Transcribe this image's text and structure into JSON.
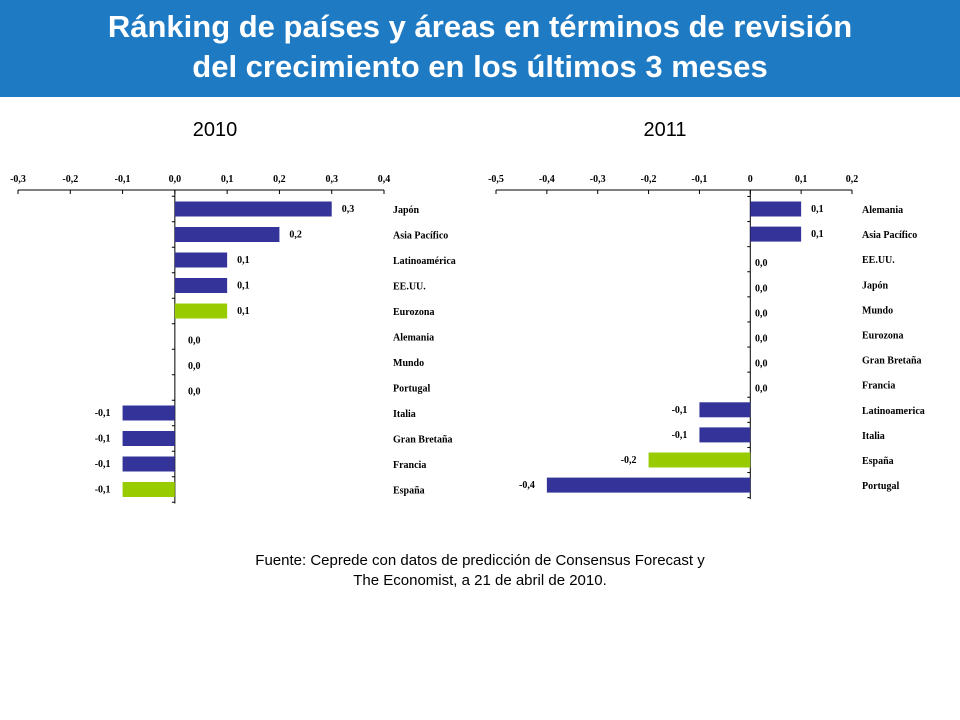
{
  "header": {
    "title_line1": "Ránking de países y áreas en términos de revisión",
    "title_line2": "del crecimiento en los últimos 3 meses"
  },
  "source": {
    "line1": "Fuente: Ceprede con datos de predicción de Consensus Forecast y",
    "line2": "The Economist, a 21 de abril de 2010."
  },
  "colors": {
    "bar_default": "#333399",
    "bar_highlight": "#99cc00"
  },
  "chart_data": [
    {
      "type": "bar",
      "orientation": "horizontal",
      "title": "2010",
      "xlim": [
        -0.3,
        0.4
      ],
      "tick_values": [
        -0.3,
        -0.2,
        -0.1,
        0.0,
        0.1,
        0.2,
        0.3,
        0.4
      ],
      "tick_labels": [
        "-0,3",
        "-0,2",
        "-0,1",
        "0,0",
        "0,1",
        "0,2",
        "0,3",
        "0,4"
      ],
      "categories": [
        "Japón",
        "Asia Pacífico",
        "Latinoamérica",
        "EE.UU.",
        "Eurozona",
        "Alemania",
        "Mundo",
        "Portugal",
        "Italia",
        "Gran Bretaña",
        "Francia",
        "España"
      ],
      "values": [
        0.3,
        0.2,
        0.1,
        0.1,
        0.1,
        0.0,
        0.0,
        0.0,
        -0.1,
        -0.1,
        -0.1,
        -0.1
      ],
      "value_labels": [
        "0,3",
        "0,2",
        "0,1",
        "0,1",
        "0,1",
        "0,0",
        "0,0",
        "0,0",
        "-0,1",
        "-0,1",
        "-0,1",
        "-0,1"
      ],
      "highlighted": [
        "Eurozona",
        "España"
      ],
      "grid": false
    },
    {
      "type": "bar",
      "orientation": "horizontal",
      "title": "2011",
      "xlim": [
        -0.5,
        0.2
      ],
      "tick_values": [
        -0.5,
        -0.4,
        -0.3,
        -0.2,
        -0.1,
        0.0,
        0.1,
        0.2
      ],
      "tick_labels": [
        "-0,5",
        "-0,4",
        "-0,3",
        "-0,2",
        "-0,1",
        "0",
        "0,1",
        "0,2"
      ],
      "categories": [
        "Alemania",
        "Asia Pacífico",
        "EE.UU.",
        "Japón",
        "Mundo",
        "Eurozona",
        "Gran Bretaña",
        "Francia",
        "Latinoamerica",
        "Italia",
        "España",
        "Portugal"
      ],
      "values": [
        0.1,
        0.1,
        0.0,
        0.0,
        0.0,
        0.0,
        0.0,
        0.0,
        -0.1,
        -0.1,
        -0.2,
        -0.4
      ],
      "value_labels": [
        "0,1",
        "0,1",
        "0,0",
        "0,0",
        "0,0",
        "0,0",
        "0,0",
        "0,0",
        "-0,1",
        "-0,1",
        "-0,2",
        "-0,4"
      ],
      "highlighted": [
        "España"
      ],
      "grid": false
    }
  ]
}
